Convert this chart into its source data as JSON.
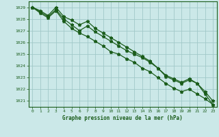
{
  "title": "Graphe pression niveau de la mer (hPa)",
  "bg_color": "#cbe8e8",
  "plot_bg_color": "#cbe8e8",
  "line_color": "#1a5c1a",
  "grid_color": "#a0c8c8",
  "xlim": [
    -0.5,
    23.5
  ],
  "ylim": [
    1020.5,
    1029.5
  ],
  "yticks": [
    1021,
    1022,
    1023,
    1024,
    1025,
    1026,
    1027,
    1028,
    1029
  ],
  "xticks": [
    0,
    1,
    2,
    3,
    4,
    5,
    6,
    7,
    8,
    9,
    10,
    11,
    12,
    13,
    14,
    15,
    16,
    17,
    18,
    19,
    20,
    21,
    22,
    23
  ],
  "series": [
    [
      1029.0,
      1028.7,
      1028.3,
      1029.0,
      1028.2,
      1027.9,
      1027.5,
      1027.8,
      1027.2,
      1026.8,
      1026.4,
      1026.0,
      1025.6,
      1025.2,
      1024.8,
      1024.4,
      1023.8,
      1023.1,
      1022.8,
      1022.5,
      1022.8,
      1022.5,
      1021.6,
      1020.7
    ],
    [
      1029.0,
      1028.6,
      1028.2,
      1028.8,
      1028.0,
      1027.5,
      1027.0,
      1027.4,
      1026.9,
      1026.5,
      1026.1,
      1025.7,
      1025.3,
      1025.0,
      1024.7,
      1024.3,
      1023.8,
      1023.2,
      1022.9,
      1022.6,
      1022.9,
      1022.5,
      1021.8,
      1021.0
    ],
    [
      1029.0,
      1028.5,
      1028.1,
      1028.7,
      1027.8,
      1027.2,
      1026.8,
      1026.5,
      1026.1,
      1025.7,
      1025.2,
      1025.0,
      1024.6,
      1024.3,
      1023.8,
      1023.5,
      1023.0,
      1022.5,
      1022.1,
      1021.8,
      1022.0,
      1021.6,
      1021.2,
      1020.7
    ]
  ]
}
